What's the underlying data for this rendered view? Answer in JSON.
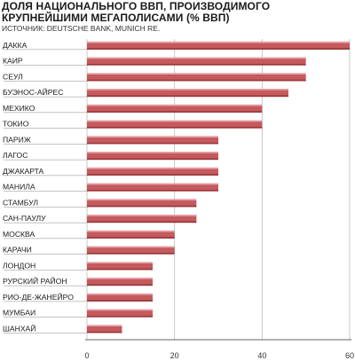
{
  "title": "ДОЛЯ НАЦИОНАЛЬНОГО ВВП, ПРОИЗВОДИМОГО КРУПНЕЙШИМИ МЕГАПОЛИСАМИ (% ВВП)",
  "subtitle": "ИСТОЧНИК: DEUTSCHE BANK, MUNICH RE.",
  "colors": {
    "bar_fill": "#c55a5e",
    "bar_light": "#e7a7aa",
    "bar_dark": "#98363a",
    "grid": "#bdbdbd",
    "leader": "#888888",
    "axis": "#333333"
  },
  "chart_data": {
    "type": "bar",
    "orientation": "horizontal",
    "categories": [
      "ДАККА",
      "КАИР",
      "СЕУЛ",
      "БУЭНОС-АЙРЕС",
      "МЕХИКО",
      "ТОКИО",
      "ПАРИЖ",
      "ЛАГОС",
      "ДЖАКАРТА",
      "МАНИЛА",
      "СТАМБУЛ",
      "САН-ПАУЛУ",
      "МОСКВА",
      "КАРАЧИ",
      "ЛОНДОН",
      "РУРСКИЙ РАЙОН",
      "РИО-ДЕ-ЖАНЕЙРО",
      "МУМБАИ",
      "ШАНХАЙ"
    ],
    "values": [
      60,
      50,
      50,
      46,
      40,
      40,
      30,
      30,
      30,
      30,
      25,
      25,
      20,
      20,
      15,
      15,
      15,
      15,
      8
    ],
    "xlim": [
      0,
      60
    ],
    "xticks": [
      0,
      20,
      40,
      60
    ],
    "grid": true,
    "legend": "none"
  }
}
